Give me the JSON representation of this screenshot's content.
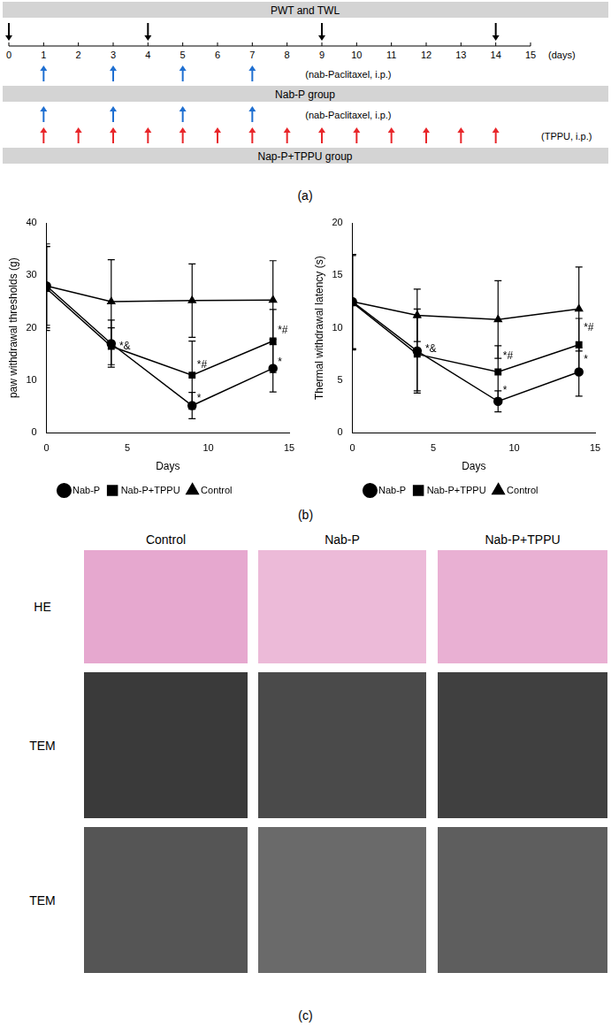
{
  "timeline": {
    "bars": [
      "PWT and TWL",
      "Nab-P group",
      "Nap-P+TPPU group"
    ],
    "days": [
      0,
      1,
      2,
      3,
      4,
      5,
      6,
      7,
      8,
      9,
      10,
      11,
      12,
      13,
      14,
      15
    ],
    "unit": "(days)",
    "measure_days": [
      0,
      4,
      9,
      14
    ],
    "nab_p_days": [
      1,
      3,
      5,
      7
    ],
    "nab_p_label": "(nab-Paclitaxel, i.p.)",
    "tppu_days": [
      1,
      2,
      3,
      4,
      5,
      6,
      7,
      8,
      9,
      10,
      11,
      12,
      13,
      14
    ],
    "tppu_label": "(TPPU, i.p.)",
    "panel_label": "(a)"
  },
  "chart_data": [
    {
      "type": "line",
      "x_label": "Days",
      "y_label": "paw withdrawal thresholds (g)",
      "xlim": [
        0,
        15
      ],
      "xticks": [
        0,
        5,
        10,
        15
      ],
      "ylim": [
        0,
        40
      ],
      "yticks": [
        0,
        10,
        20,
        30,
        40
      ],
      "grid": false,
      "legend": "bottom",
      "series": [
        {
          "name": "Nab-P",
          "color": "#000000",
          "marker": "circle",
          "x": [
            0,
            4,
            9,
            14
          ],
          "values": [
            28,
            17,
            5.2,
            12.3
          ],
          "errors": [
            8,
            4.5,
            2.5,
            4.5
          ]
        },
        {
          "name": "Nab-P+TPPU",
          "color": "#000000",
          "marker": "square",
          "x": [
            0,
            4,
            9,
            14
          ],
          "values": [
            27.5,
            16.5,
            11,
            17.5
          ],
          "errors": [
            8,
            3.5,
            6.5,
            6
          ]
        },
        {
          "name": "Control",
          "color": "#000000",
          "marker": "triangle",
          "x": [
            0,
            4,
            9,
            14
          ],
          "values": [
            28,
            25,
            25.2,
            25.3
          ],
          "errors": [
            7.5,
            8,
            7,
            7.5
          ]
        }
      ],
      "annotations": [
        {
          "x": 4.5,
          "y": 16.5,
          "text": "*&"
        },
        {
          "x": 9.3,
          "y": 13,
          "text": "*#"
        },
        {
          "x": 9.3,
          "y": 6.5,
          "text": "*"
        },
        {
          "x": 14.3,
          "y": 19.5,
          "text": "*#"
        },
        {
          "x": 14.3,
          "y": 13.5,
          "text": "*"
        }
      ]
    },
    {
      "type": "line",
      "x_label": "Days",
      "y_label": "Thermal withdrawal latency (s)",
      "xlim": [
        0,
        15
      ],
      "xticks": [
        0,
        5,
        10,
        15
      ],
      "ylim": [
        0,
        20
      ],
      "yticks": [
        0,
        5,
        10,
        15,
        20
      ],
      "grid": false,
      "legend": "bottom",
      "series": [
        {
          "name": "Nab-P",
          "color": "#000000",
          "marker": "circle",
          "x": [
            0,
            4,
            9,
            14
          ],
          "values": [
            12.5,
            7.8,
            3.0,
            5.8
          ],
          "errors": [
            4.5,
            4,
            1,
            2.3
          ]
        },
        {
          "name": "Nab-P+TPPU",
          "color": "#000000",
          "marker": "square",
          "x": [
            0,
            4,
            9,
            14
          ],
          "values": [
            12.4,
            7.5,
            5.8,
            8.4
          ],
          "errors": [
            4.5,
            3.5,
            2.5,
            2.5
          ]
        },
        {
          "name": "Control",
          "color": "#000000",
          "marker": "triangle",
          "x": [
            0,
            4,
            9,
            14
          ],
          "values": [
            12.5,
            11.2,
            10.8,
            11.8
          ],
          "errors": [
            4.5,
            2.5,
            3.7,
            4
          ]
        }
      ],
      "annotations": [
        {
          "x": 4.5,
          "y": 8,
          "text": "*&"
        },
        {
          "x": 9.3,
          "y": 7.3,
          "text": "*#"
        },
        {
          "x": 9.3,
          "y": 4,
          "text": "*"
        },
        {
          "x": 14.3,
          "y": 10,
          "text": "*#"
        },
        {
          "x": 14.3,
          "y": 7,
          "text": "*"
        }
      ]
    }
  ],
  "panel_b_label": "(b)",
  "images": {
    "columns": [
      "Control",
      "Nab-P",
      "Nab-P+TPPU"
    ],
    "rows": [
      "HE",
      "TEM",
      "TEM"
    ],
    "panel_label": "(c)"
  }
}
